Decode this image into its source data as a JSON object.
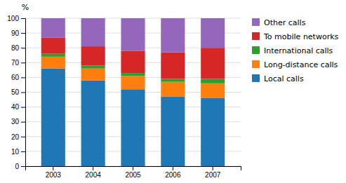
{
  "chart_data": {
    "type": "bar",
    "stacked": true,
    "ylabel": "%",
    "categories": [
      "2003",
      "2004",
      "2005",
      "2006",
      "2007"
    ],
    "series": [
      {
        "name": "Local calls",
        "values": [
          66,
          58,
          52,
          47,
          46
        ]
      },
      {
        "name": "Long-distance calls",
        "values": [
          8,
          8,
          9,
          10,
          10
        ]
      },
      {
        "name": "International calls",
        "values": [
          2,
          2,
          2,
          2,
          3
        ]
      },
      {
        "name": "To mobile networks",
        "values": [
          11,
          13,
          15,
          18,
          21
        ]
      },
      {
        "name": "Other calls",
        "values": [
          13,
          19,
          22,
          23,
          20
        ]
      }
    ],
    "ylim": [
      0,
      100
    ],
    "yticks": [
      0,
      10,
      20,
      30,
      40,
      50,
      60,
      70,
      80,
      90,
      100
    ],
    "grid": true,
    "legend": "right"
  }
}
